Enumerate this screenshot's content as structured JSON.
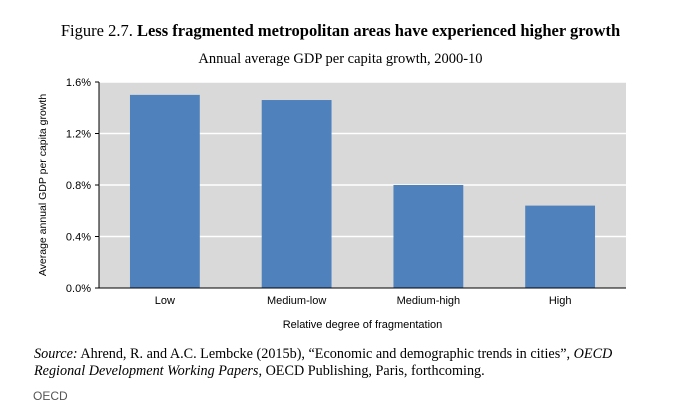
{
  "figure": {
    "label": "Figure 2.7.",
    "title": "Less fragmented metropolitan areas have experienced higher growth",
    "subtitle": "Annual average GDP per capita growth, 2000-10"
  },
  "chart_data": {
    "type": "bar",
    "categories": [
      "Low",
      "Medium-low",
      "Medium-high",
      "High"
    ],
    "values": [
      1.5,
      1.46,
      0.8,
      0.64
    ],
    "ylim": [
      0,
      1.6
    ],
    "yticks": [
      0,
      0.4,
      0.8,
      1.2,
      1.6
    ],
    "ytick_labels": [
      "0.0%",
      "0.4%",
      "0.8%",
      "1.2%",
      "1.6%"
    ],
    "xlabel": "Relative degree of fragmentation",
    "ylabel": "Average annual GDP per capita growth",
    "grid": true,
    "bar_color": "#4f81bd",
    "plot_background": "#d9d9d9"
  },
  "source": {
    "label": "Source:",
    "authors": "Ahrend, R. and A.C. Lembcke (2015b), “Economic and demographic trends in cities”,",
    "series": "OECD Regional Development Working Papers",
    "publisher": ", OECD Publishing, Paris, forthcoming."
  },
  "credit": "OECD"
}
